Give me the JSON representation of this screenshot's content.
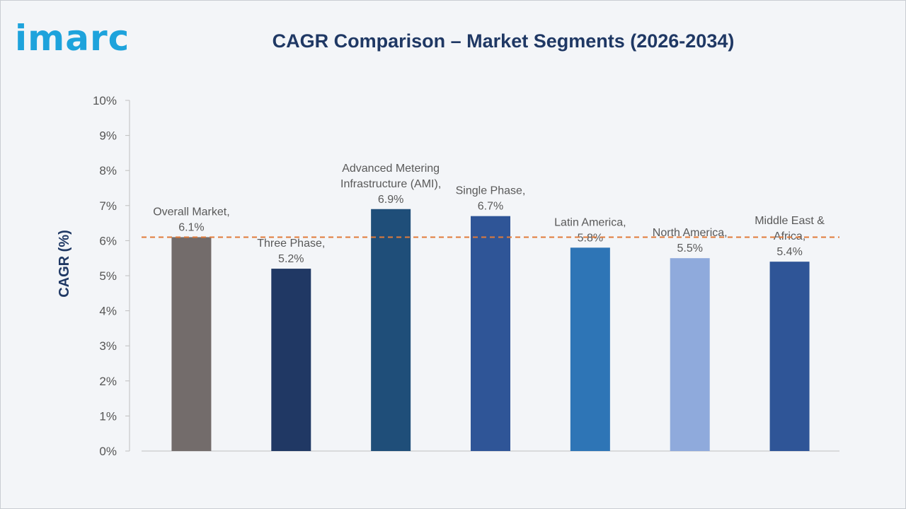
{
  "brand": {
    "logo_text": "imarc",
    "color": "#1ea3dc"
  },
  "chart_data": {
    "type": "bar",
    "title": "CAGR Comparison – Market Segments (2026-2034)",
    "ylabel": "CAGR (%)",
    "xlabel": "",
    "ylim": [
      0,
      10
    ],
    "yticks": [
      "0%",
      "1%",
      "2%",
      "3%",
      "4%",
      "5%",
      "6%",
      "7%",
      "8%",
      "9%",
      "10%"
    ],
    "grid": false,
    "categories": [
      "Overall Market",
      "Three Phase",
      "Advanced Metering Infrastructure (AMI)",
      "Single Phase",
      "Latin America",
      "North America",
      "Middle East & Africa"
    ],
    "values": [
      6.1,
      5.2,
      6.9,
      6.7,
      5.8,
      5.5,
      5.4
    ],
    "data_labels": [
      [
        "Overall Market,",
        "6.1%"
      ],
      [
        "Three Phase,",
        "5.2%"
      ],
      [
        "Advanced Metering",
        "Infrastructure (AMI),",
        "6.9%"
      ],
      [
        "Single Phase,",
        "6.7%"
      ],
      [
        "Latin America,",
        "5.8%"
      ],
      [
        "North America,",
        "5.5%"
      ],
      [
        "Middle East &",
        "Africa,",
        "5.4%"
      ]
    ],
    "bar_colors": [
      "#736c6b",
      "#203864",
      "#1f4e79",
      "#2f5597",
      "#2e75b6",
      "#8faadc",
      "#2f5597"
    ],
    "reference_line": {
      "value": 6.1,
      "style": "dashed",
      "color": "#e07a3a"
    }
  }
}
